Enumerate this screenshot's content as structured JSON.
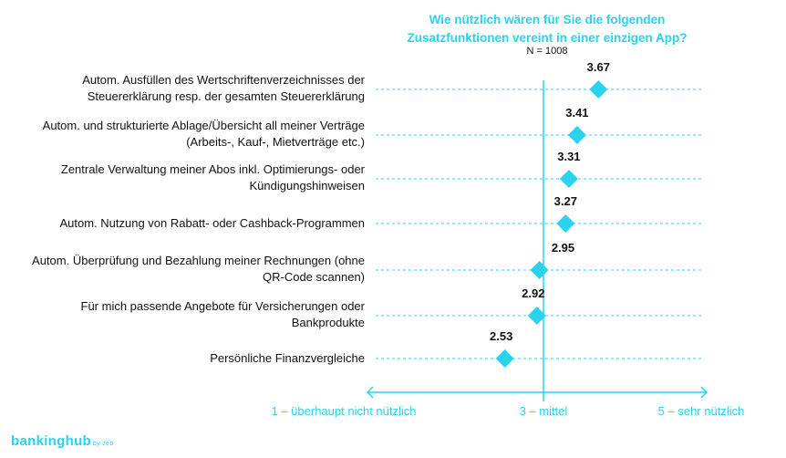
{
  "chart_data": {
    "type": "dot",
    "title": "Wie nützlich wären für Sie die folgenden Zusatzfunktionen vereint in einer einzigen App?",
    "subtitle": "N = 1008",
    "categories": [
      "Autom. Ausfüllen des Wertschriftenverzeichnisses der Steuererklärung resp. der gesamten Steuererklärung",
      "Autom. und strukturierte Ablage/Übersicht all meiner Verträge (Arbeits-, Kauf-, Mietverträge etc.)",
      "Zentrale Verwaltung meiner Abos inkl. Optimierungs- oder Kündigungshinweisen",
      "Autom. Nutzung von Rabatt- oder Cashback-Programmen",
      "Autom. Überprüfung und Bezahlung meiner Rechnungen (ohne QR-Code scannen)",
      "Für mich passende Angebote für Versicherungen oder Bankprodukte",
      "Persönliche Finanzvergleiche"
    ],
    "values": [
      3.67,
      3.41,
      3.31,
      3.27,
      2.95,
      2.92,
      2.53
    ],
    "value_labels": [
      "3.67",
      "3.41",
      "3.31",
      "3.27",
      "2.95",
      "2.92",
      "2.53"
    ],
    "xlim": [
      1,
      5
    ],
    "reference_value": 3,
    "axis_labels": [
      "1 – überhaupt nicht nützlich",
      "3 – mittel",
      "5 – sehr nützlich"
    ],
    "color": "#29d3ee"
  },
  "logo": {
    "text": "bankinghub",
    "suffix": "by zeb"
  }
}
